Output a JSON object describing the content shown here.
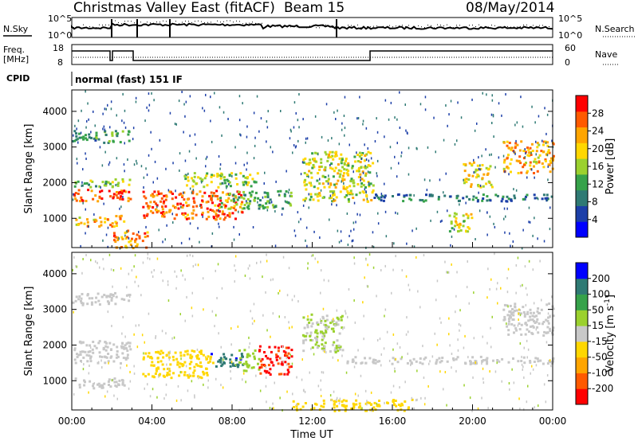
{
  "header": {
    "radar": "Christmas Valley East (fitACF)",
    "beam": "Beam 15",
    "date": "08/May/2014"
  },
  "noise_panel": {
    "left_label": "N.Sky",
    "right_label": "N.Search",
    "ticks_left": [
      "10^5",
      "10^0"
    ],
    "ticks_right": [
      "10^5",
      "10^0"
    ]
  },
  "freq_panel": {
    "left_label_1": "Freq.",
    "left_label_2": "[MHz]",
    "right_label": "Nave",
    "ticks_left": [
      "18",
      "8"
    ],
    "ticks_right": [
      "60",
      "0"
    ]
  },
  "cpid": {
    "label": "CPID",
    "value": "normal (fast) 151 IF"
  },
  "colors": {
    "power_scale": [
      "#0000ff",
      "#1c3fa8",
      "#2f7a74",
      "#36a24a",
      "#9bd12e",
      "#ffd700",
      "#ffa500",
      "#ff5a00",
      "#ff0000"
    ],
    "velocity_scale": [
      "#ff0000",
      "#ff5a00",
      "#ffa500",
      "#ffd700",
      "#c8c8c8",
      "#9bd12e",
      "#36a24a",
      "#2f7a74",
      "#0000ff"
    ]
  },
  "chart_data": [
    {
      "type": "heatmap",
      "name": "power",
      "xlabel": "",
      "ylabel": "Slant Range [km]",
      "x_range_hours": [
        0,
        24
      ],
      "ylim": [
        180,
        4600
      ],
      "y_ticks": [
        "1000",
        "2000",
        "3000",
        "4000"
      ],
      "colorbar": {
        "label": "Power [dB]",
        "ticks": [
          "4",
          "8",
          "12",
          "16",
          "20",
          "24",
          "28"
        ],
        "range": [
          0,
          32
        ]
      },
      "features": [
        {
          "t0": 0.0,
          "t1": 2.9,
          "r0": 1500,
          "r1": 1850,
          "value": 27
        },
        {
          "t0": 0.0,
          "t1": 2.9,
          "r0": 1900,
          "r1": 2150,
          "value": 14
        },
        {
          "t0": 0.0,
          "t1": 2.6,
          "r0": 800,
          "r1": 1100,
          "value": 22
        },
        {
          "t0": 0.0,
          "t1": 2.9,
          "r0": 3150,
          "r1": 3500,
          "value": 12
        },
        {
          "t0": 2.0,
          "t1": 3.8,
          "r0": 200,
          "r1": 700,
          "value": 24
        },
        {
          "t0": 3.5,
          "t1": 8.5,
          "r0": 1000,
          "r1": 1800,
          "value": 26
        },
        {
          "t0": 5.5,
          "t1": 9.3,
          "r0": 1900,
          "r1": 2300,
          "value": 15
        },
        {
          "t0": 7.3,
          "t1": 9.2,
          "r0": 1300,
          "r1": 1800,
          "value": 14
        },
        {
          "t0": 9.2,
          "t1": 11.0,
          "r0": 1300,
          "r1": 1800,
          "value": 12
        },
        {
          "t0": 11.5,
          "t1": 15.0,
          "r0": 1500,
          "r1": 2900,
          "value": 18
        },
        {
          "t0": 15.0,
          "t1": 24.0,
          "r0": 1500,
          "r1": 1700,
          "value": 9
        },
        {
          "t0": 18.8,
          "t1": 20.0,
          "r0": 600,
          "r1": 1200,
          "value": 18
        },
        {
          "t0": 19.5,
          "t1": 21.0,
          "r0": 1900,
          "r1": 2600,
          "value": 20
        },
        {
          "t0": 21.5,
          "t1": 24.0,
          "r0": 2300,
          "r1": 3200,
          "value": 22
        }
      ]
    },
    {
      "type": "heatmap",
      "name": "velocity",
      "xlabel": "Time UT",
      "ylabel": "Slant Range [km]",
      "x_range_hours": [
        0,
        24
      ],
      "x_ticks": [
        "00:00",
        "04:00",
        "08:00",
        "12:00",
        "16:00",
        "20:00",
        "00:00"
      ],
      "ylim": [
        180,
        4600
      ],
      "y_ticks": [
        "1000",
        "2000",
        "3000",
        "4000"
      ],
      "colorbar": {
        "label": "Velocity [m s^-1]",
        "ticks": [
          "-200",
          "-100",
          "-50",
          "-15",
          "15",
          "50",
          "100",
          "200"
        ],
        "range": [
          -250,
          250
        ]
      },
      "features": [
        {
          "t0": 0.0,
          "t1": 2.9,
          "r0": 1500,
          "r1": 2150,
          "value": 0
        },
        {
          "t0": 0.0,
          "t1": 2.6,
          "r0": 800,
          "r1": 1100,
          "value": 0
        },
        {
          "t0": 0.0,
          "t1": 2.9,
          "r0": 3150,
          "r1": 3500,
          "value": 0
        },
        {
          "t0": 3.5,
          "t1": 7.0,
          "r0": 1100,
          "r1": 1900,
          "value": -60
        },
        {
          "t0": 6.8,
          "t1": 8.5,
          "r0": 1400,
          "r1": 1800,
          "value": 180
        },
        {
          "t0": 8.3,
          "t1": 9.3,
          "r0": 1300,
          "r1": 1900,
          "value": 60
        },
        {
          "t0": 9.3,
          "t1": 11.0,
          "r0": 1200,
          "r1": 2000,
          "value": -200
        },
        {
          "t0": 11.5,
          "t1": 13.5,
          "r0": 1800,
          "r1": 2900,
          "value": 30
        },
        {
          "t0": 13.5,
          "t1": 24.0,
          "r0": 1500,
          "r1": 1700,
          "value": 0
        },
        {
          "t0": 11.0,
          "t1": 17.0,
          "r0": 180,
          "r1": 500,
          "value": -60
        },
        {
          "t0": 21.5,
          "t1": 24.0,
          "r0": 2300,
          "r1": 3200,
          "value": 0
        }
      ]
    }
  ]
}
